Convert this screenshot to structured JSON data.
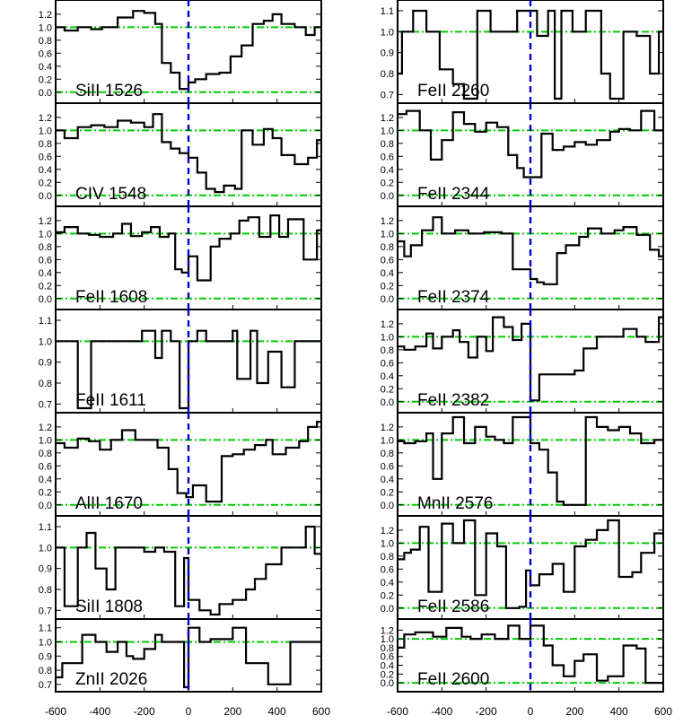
{
  "colors": {
    "frame": "#000000",
    "spectrum": "#000000",
    "continuum": "#00cc00",
    "zero_velocity": "#0000cc"
  },
  "x_axis": {
    "ticks": [
      "-600",
      "-400",
      "-200",
      "0",
      "200",
      "400",
      "600"
    ]
  },
  "chart_data": [
    {
      "type": "line",
      "column": "left",
      "label": "SiII 1526",
      "ylim": [
        -0.1,
        1.35
      ],
      "yticks": [
        "0.0",
        "0.2",
        "0.4",
        "0.6",
        "0.8",
        "1.0",
        "1.2"
      ],
      "x": [
        -600,
        -560,
        -500,
        -440,
        -390,
        -320,
        -250,
        -200,
        -150,
        -120,
        -80,
        -40,
        0,
        30,
        80,
        140,
        190,
        240,
        290,
        340,
        380,
        420,
        480,
        530,
        570,
        600
      ],
      "y": [
        1.0,
        0.95,
        1.0,
        0.97,
        1.0,
        1.15,
        1.25,
        1.22,
        1.05,
        0.45,
        0.3,
        0.05,
        0.15,
        0.2,
        0.28,
        0.3,
        0.55,
        0.72,
        1.05,
        1.1,
        1.2,
        1.05,
        1.0,
        0.88,
        1.0,
        1.0
      ]
    },
    {
      "type": "line",
      "column": "left",
      "label": "CIV 1548",
      "ylim": [
        -0.1,
        1.35
      ],
      "yticks": [
        "0.0",
        "0.2",
        "0.4",
        "0.6",
        "0.8",
        "1.0",
        "1.2"
      ],
      "x": [
        -600,
        -560,
        -500,
        -440,
        -380,
        -320,
        -260,
        -200,
        -160,
        -120,
        -80,
        -40,
        0,
        40,
        80,
        120,
        160,
        210,
        240,
        290,
        340,
        380,
        420,
        480,
        540,
        580,
        600
      ],
      "y": [
        1.0,
        0.88,
        1.05,
        1.08,
        1.05,
        1.15,
        1.12,
        1.05,
        1.25,
        0.82,
        0.72,
        0.65,
        0.58,
        0.35,
        0.1,
        0.05,
        0.15,
        0.1,
        1.0,
        0.78,
        1.02,
        0.88,
        0.62,
        0.48,
        0.58,
        0.85,
        0.85
      ]
    },
    {
      "type": "line",
      "column": "left",
      "label": "FeII 1608",
      "ylim": [
        -0.1,
        1.35
      ],
      "yticks": [
        "0.0",
        "0.2",
        "0.4",
        "0.6",
        "0.8",
        "1.0",
        "1.2"
      ],
      "x": [
        -600,
        -560,
        -500,
        -450,
        -400,
        -340,
        -300,
        -260,
        -210,
        -170,
        -130,
        -90,
        -60,
        -30,
        0,
        40,
        100,
        140,
        190,
        230,
        270,
        320,
        370,
        410,
        450,
        520,
        580,
        600
      ],
      "y": [
        1.02,
        1.1,
        1.0,
        0.98,
        0.95,
        1.0,
        1.15,
        0.96,
        1.02,
        1.1,
        0.95,
        1.0,
        0.45,
        0.4,
        0.65,
        0.28,
        0.8,
        0.92,
        1.0,
        1.2,
        1.25,
        0.95,
        1.28,
        0.95,
        1.22,
        0.6,
        1.05,
        1.05
      ]
    },
    {
      "type": "line",
      "column": "left",
      "label": "FeII 1611",
      "ylim": [
        0.68,
        1.13
      ],
      "yticks": [
        "0.7",
        "0.8",
        "0.9",
        "1.0",
        "1.1"
      ],
      "x": [
        -600,
        -560,
        -500,
        -440,
        -380,
        -340,
        -290,
        -240,
        -210,
        -150,
        -120,
        -80,
        -40,
        0,
        40,
        80,
        140,
        200,
        220,
        280,
        310,
        360,
        420,
        480,
        520,
        580,
        600
      ],
      "y": [
        1.0,
        1.0,
        0.68,
        1.0,
        1.0,
        1.0,
        1.0,
        1.0,
        1.05,
        0.92,
        1.05,
        1.0,
        0.68,
        1.0,
        1.05,
        1.0,
        1.0,
        1.05,
        0.82,
        1.05,
        0.8,
        0.95,
        0.78,
        1.0,
        1.0,
        1.0,
        1.0
      ]
    },
    {
      "type": "line",
      "column": "left",
      "label": "AlII 1670",
      "ylim": [
        -0.1,
        1.35
      ],
      "yticks": [
        "0.0",
        "0.2",
        "0.4",
        "0.6",
        "0.8",
        "1.0",
        "1.2"
      ],
      "x": [
        -600,
        -560,
        -500,
        -450,
        -400,
        -350,
        -300,
        -240,
        -190,
        -140,
        -90,
        -50,
        -10,
        20,
        80,
        150,
        200,
        250,
        300,
        350,
        380,
        440,
        500,
        540,
        580,
        600
      ],
      "y": [
        0.95,
        0.88,
        1.02,
        0.98,
        0.85,
        1.0,
        1.15,
        1.0,
        1.0,
        0.88,
        0.55,
        0.18,
        0.12,
        0.3,
        0.05,
        0.75,
        0.78,
        0.85,
        0.92,
        1.0,
        0.78,
        0.88,
        0.98,
        1.2,
        1.28,
        1.28
      ]
    },
    {
      "type": "line",
      "column": "left",
      "label": "SiII 1808",
      "ylim": [
        0.68,
        1.13
      ],
      "yticks": [
        "0.7",
        "0.8",
        "0.9",
        "1.0",
        "1.1"
      ],
      "x": [
        -600,
        -560,
        -500,
        -460,
        -420,
        -370,
        -330,
        -290,
        -240,
        -200,
        -150,
        -110,
        -60,
        -20,
        0,
        50,
        100,
        140,
        200,
        260,
        300,
        350,
        420,
        480,
        530,
        570,
        600
      ],
      "y": [
        1.0,
        0.72,
        1.0,
        1.07,
        0.9,
        0.8,
        1.0,
        1.0,
        1.0,
        0.98,
        1.0,
        0.98,
        0.72,
        0.95,
        0.75,
        0.7,
        0.68,
        0.73,
        0.75,
        0.8,
        0.85,
        0.92,
        1.0,
        1.0,
        1.1,
        0.97,
        0.97
      ]
    },
    {
      "type": "line",
      "column": "left",
      "label": "ZnII 2026",
      "ylim": [
        0.68,
        1.13
      ],
      "yticks": [
        "0.7",
        "0.8",
        "0.9",
        "1.0",
        "1.1"
      ],
      "x": [
        -600,
        -570,
        -530,
        -480,
        -420,
        -370,
        -320,
        -280,
        -250,
        -200,
        -150,
        -120,
        -60,
        -20,
        0,
        50,
        100,
        150,
        200,
        260,
        300,
        360,
        400,
        460,
        500,
        550,
        600
      ],
      "y": [
        0.75,
        0.85,
        0.85,
        1.05,
        1.0,
        0.93,
        1.0,
        0.9,
        0.88,
        0.95,
        1.05,
        1.0,
        1.0,
        0.68,
        1.1,
        1.0,
        1.02,
        1.02,
        1.1,
        0.85,
        0.85,
        0.7,
        0.7,
        1.0,
        1.0,
        1.0,
        1.0
      ]
    },
    {
      "type": "line",
      "column": "right",
      "label": "FeII 2260",
      "ylim": [
        0.68,
        1.13
      ],
      "yticks": [
        "0.7",
        "0.8",
        "0.9",
        "1.0",
        "1.1"
      ],
      "x": [
        -600,
        -580,
        -530,
        -470,
        -410,
        -350,
        -300,
        -240,
        -180,
        -130,
        -80,
        -60,
        -30,
        0,
        30,
        80,
        110,
        140,
        190,
        250,
        320,
        360,
        420,
        480,
        540,
        580,
        600
      ],
      "y": [
        0.8,
        1.0,
        1.1,
        1.0,
        0.82,
        0.75,
        0.68,
        1.1,
        1.0,
        1.0,
        1.0,
        1.1,
        1.1,
        1.1,
        0.98,
        1.1,
        0.68,
        1.1,
        1.0,
        1.1,
        0.8,
        0.68,
        1.0,
        0.98,
        0.8,
        1.0,
        1.0
      ]
    },
    {
      "type": "line",
      "column": "right",
      "label": "FeII 2344",
      "ylim": [
        -0.1,
        1.35
      ],
      "yticks": [
        "0.0",
        "0.2",
        "0.4",
        "0.6",
        "0.8",
        "1.0",
        "1.2"
      ],
      "x": [
        -600,
        -560,
        -500,
        -450,
        -400,
        -350,
        -300,
        -250,
        -200,
        -150,
        -100,
        -60,
        -30,
        0,
        50,
        100,
        150,
        200,
        250,
        300,
        360,
        400,
        450,
        500,
        560,
        600
      ],
      "y": [
        1.25,
        1.3,
        1.0,
        0.55,
        0.85,
        1.28,
        1.1,
        0.98,
        1.12,
        1.05,
        0.62,
        0.42,
        0.28,
        0.28,
        0.95,
        0.7,
        0.75,
        0.82,
        0.78,
        0.85,
        0.98,
        1.02,
        1.0,
        1.3,
        1.0,
        1.0
      ]
    },
    {
      "type": "line",
      "column": "right",
      "label": "FeII 2374",
      "ylim": [
        -0.1,
        1.35
      ],
      "yticks": [
        "0.0",
        "0.2",
        "0.4",
        "0.6",
        "0.8",
        "1.0",
        "1.2"
      ],
      "x": [
        -600,
        -570,
        -540,
        -490,
        -440,
        -400,
        -340,
        -280,
        -210,
        -160,
        -130,
        -80,
        -40,
        0,
        30,
        60,
        120,
        160,
        220,
        260,
        320,
        380,
        420,
        480,
        540,
        580,
        600
      ],
      "y": [
        0.88,
        0.65,
        0.82,
        1.05,
        1.25,
        1.0,
        1.05,
        1.0,
        1.02,
        1.02,
        1.0,
        0.45,
        0.45,
        0.3,
        0.25,
        0.22,
        0.7,
        0.82,
        0.95,
        1.08,
        1.0,
        1.05,
        1.1,
        0.98,
        0.75,
        0.65,
        0.65
      ]
    },
    {
      "type": "line",
      "column": "right",
      "label": "FeII 2382",
      "ylim": [
        -0.1,
        1.35
      ],
      "yticks": [
        "0.0",
        "0.2",
        "0.4",
        "0.6",
        "0.8",
        "1.0",
        "1.2"
      ],
      "x": [
        -600,
        -570,
        -520,
        -470,
        -440,
        -400,
        -350,
        -320,
        -280,
        -240,
        -200,
        -170,
        -120,
        -80,
        -40,
        0,
        40,
        80,
        150,
        200,
        240,
        300,
        360,
        420,
        480,
        520,
        580,
        600
      ],
      "y": [
        0.85,
        0.8,
        0.85,
        1.05,
        0.82,
        1.0,
        1.1,
        0.92,
        0.68,
        1.0,
        0.78,
        1.3,
        1.15,
        0.95,
        1.2,
        0.02,
        0.42,
        0.42,
        0.42,
        0.48,
        0.82,
        1.0,
        1.0,
        1.12,
        1.0,
        0.92,
        1.3,
        1.3
      ]
    },
    {
      "type": "line",
      "column": "right",
      "label": "MnII 2576",
      "ylim": [
        -0.1,
        1.35
      ],
      "yticks": [
        "0.0",
        "0.2",
        "0.4",
        "0.6",
        "0.8",
        "1.0",
        "1.2"
      ],
      "x": [
        -600,
        -570,
        -520,
        -470,
        -440,
        -400,
        -350,
        -300,
        -250,
        -200,
        -160,
        -120,
        -80,
        -40,
        0,
        40,
        80,
        120,
        150,
        200,
        250,
        300,
        350,
        400,
        450,
        500,
        560,
        600
      ],
      "y": [
        0.98,
        0.95,
        0.98,
        1.1,
        0.4,
        1.1,
        1.35,
        0.95,
        1.2,
        1.05,
        1.0,
        0.95,
        1.35,
        1.35,
        0.95,
        0.85,
        0.5,
        0.05,
        0.0,
        0.0,
        1.35,
        1.2,
        1.15,
        1.2,
        1.1,
        0.95,
        1.0,
        1.0
      ]
    },
    {
      "type": "line",
      "column": "right",
      "label": "FeII 2586",
      "ylim": [
        -0.1,
        1.35
      ],
      "yticks": [
        "0.0",
        "0.2",
        "0.4",
        "0.6",
        "0.8",
        "1.0",
        "1.2"
      ],
      "x": [
        -600,
        -570,
        -540,
        -500,
        -460,
        -400,
        -350,
        -300,
        -250,
        -200,
        -150,
        -110,
        -50,
        -20,
        0,
        40,
        100,
        150,
        200,
        250,
        300,
        350,
        400,
        460,
        500,
        560,
        600
      ],
      "y": [
        0.75,
        0.85,
        0.9,
        1.25,
        0.25,
        1.3,
        1.0,
        1.35,
        0.2,
        1.15,
        0.95,
        0.0,
        0.02,
        0.58,
        0.35,
        0.52,
        0.68,
        0.25,
        0.95,
        1.05,
        1.2,
        1.35,
        0.48,
        0.55,
        0.85,
        1.15,
        1.15
      ]
    },
    {
      "type": "line",
      "column": "right",
      "label": "FeII 2600",
      "ylim": [
        -0.1,
        1.35
      ],
      "yticks": [
        "0.0",
        "0.2",
        "0.4",
        "0.6",
        "0.8",
        "1.0",
        "1.2"
      ],
      "x": [
        -600,
        -570,
        -520,
        -440,
        -380,
        -310,
        -270,
        -220,
        -160,
        -100,
        -50,
        0,
        60,
        100,
        150,
        200,
        240,
        300,
        350,
        420,
        480,
        520,
        570,
        600
      ],
      "y": [
        0.8,
        1.1,
        1.15,
        1.05,
        1.25,
        1.05,
        1.0,
        1.1,
        1.0,
        1.3,
        1.0,
        1.3,
        0.85,
        0.4,
        0.15,
        0.5,
        0.65,
        0.05,
        0.15,
        0.85,
        0.78,
        0.0,
        0.0,
        0.0
      ]
    }
  ]
}
